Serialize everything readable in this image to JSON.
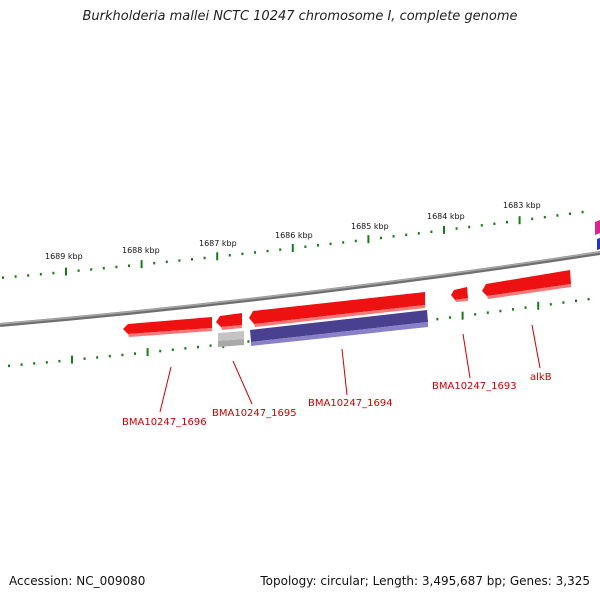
{
  "title": "Burkholderia mallei NCTC 10247 chromosome I, complete genome",
  "footer": {
    "accession": "Accession: NC_009080",
    "summary": "Topology: circular; Length: 3,495,687 bp; Genes: 3,325"
  },
  "scale": {
    "unit": "kbp",
    "labels": [
      "1689 kbp",
      "1688 kbp",
      "1687 kbp",
      "1686 kbp",
      "1685 kbp",
      "1684 kbp",
      "1683 kbp"
    ]
  },
  "genes": [
    {
      "name": "BMA10247_1696",
      "labeled": true
    },
    {
      "name": "BMA10247_1695",
      "labeled": true
    },
    {
      "name": "BMA10247_1694",
      "labeled": true
    },
    {
      "name": "BMA10247_1693",
      "labeled": true
    },
    {
      "name": "alkB",
      "labeled": true
    }
  ],
  "colors": {
    "forward_gene": "#ee1111",
    "reverse_gene": "#4a4090",
    "gray_feature": "#bbbbbb",
    "backbone": "#888888",
    "ticks": "#1a7a1a",
    "label_text": "#cc0000",
    "edge_magenta": "#dd2288",
    "edge_blue": "#2233cc"
  }
}
